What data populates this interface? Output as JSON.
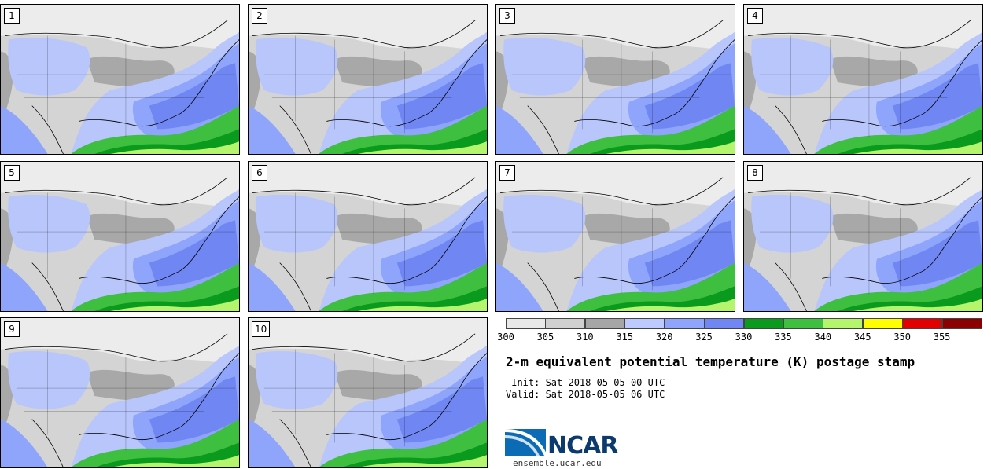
{
  "panels": [
    {
      "label": "1"
    },
    {
      "label": "2"
    },
    {
      "label": "3"
    },
    {
      "label": "4"
    },
    {
      "label": "5"
    },
    {
      "label": "6"
    },
    {
      "label": "7"
    },
    {
      "label": "8"
    },
    {
      "label": "9"
    },
    {
      "label": "10"
    }
  ],
  "colorbar": {
    "bins": [
      {
        "color": "#e9e9e9"
      },
      {
        "color": "#d0d0d0"
      },
      {
        "color": "#a6a6a6"
      },
      {
        "color": "#bccafe"
      },
      {
        "color": "#8ea5fb"
      },
      {
        "color": "#7086f2"
      },
      {
        "color": "#0a9a1d"
      },
      {
        "color": "#3fbf3f"
      },
      {
        "color": "#b5f46d"
      },
      {
        "color": "#fffe00"
      },
      {
        "color": "#e30000"
      },
      {
        "color": "#8b0000"
      }
    ],
    "labels": [
      "300",
      "305",
      "310",
      "315",
      "320",
      "325",
      "330",
      "335",
      "340",
      "345",
      "350",
      "355"
    ]
  },
  "title": "2-m equivalent potential temperature (K) postage stamp",
  "init": " Init: Sat 2018-05-05 00 UTC",
  "valid": "Valid: Sat 2018-05-05 06 UTC",
  "logo": {
    "text": "NCAR",
    "url": "ensemble.ucar.edu"
  }
}
